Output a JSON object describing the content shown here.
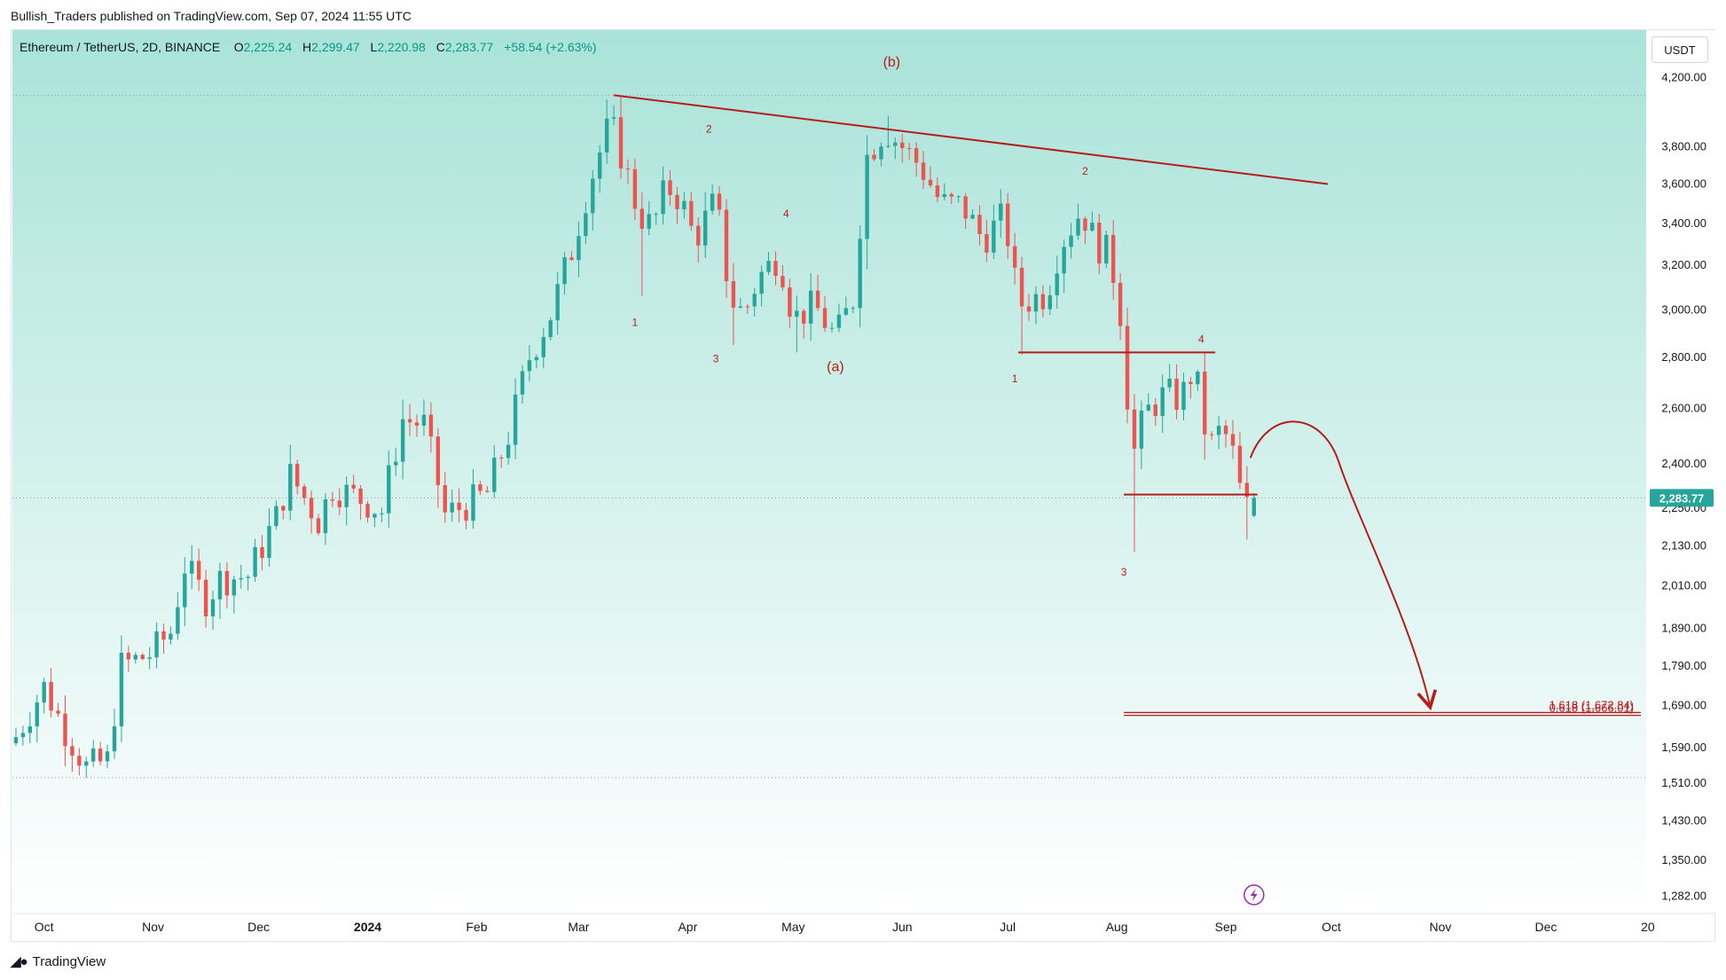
{
  "header": {
    "published_line": "Bullish_Traders published on TradingView.com, Sep 07, 2024 11:55 UTC"
  },
  "legend": {
    "symbol": "Ethereum / TetherUS, 2D, BINANCE",
    "o_label": "O",
    "o_value": "2,225.24",
    "h_label": "H",
    "h_value": "2,299.47",
    "l_label": "L",
    "l_value": "2,220.98",
    "c_label": "C",
    "c_value": "2,283.77",
    "change": "+58.54 (+2.63%)"
  },
  "currency_badge": "USDT",
  "footer": {
    "brand": "TradingView",
    "logo_icon": "tradingview-logo-icon"
  },
  "colors": {
    "up": "#26a69a",
    "down": "#ef5350",
    "annotation": "#b71c1c",
    "annotation_text": "#b71c1c",
    "price_badge": "#26a69a",
    "bg_top": "#a9e3d9",
    "bg_bottom": "#ffffff"
  },
  "chart_data": {
    "type": "candlestick",
    "timeframe": "2D",
    "y_scale": "log",
    "y_range": [
      1250,
      4500
    ],
    "x_range": [
      "2023-09-22",
      "2024-12-28"
    ],
    "y_ticks": [
      "4,200.00",
      "3,800.00",
      "3,600.00",
      "3,400.00",
      "3,200.00",
      "3,000.00",
      "2,800.00",
      "2,600.00",
      "2,400.00",
      "2,250.00",
      "2,130.00",
      "2,010.00",
      "1,890.00",
      "1,790.00",
      "1,690.00",
      "1,590.00",
      "1,510.00",
      "1,430.00",
      "1,350.00",
      "1,282.00"
    ],
    "x_ticks": [
      {
        "label": "Oct",
        "date": "2023-10-01"
      },
      {
        "label": "Nov",
        "date": "2023-11-01"
      },
      {
        "label": "Dec",
        "date": "2023-12-01"
      },
      {
        "label": "2024",
        "date": "2024-01-01",
        "bold": true
      },
      {
        "label": "Feb",
        "date": "2024-02-01"
      },
      {
        "label": "Mar",
        "date": "2024-03-01"
      },
      {
        "label": "Apr",
        "date": "2024-04-01"
      },
      {
        "label": "May",
        "date": "2024-05-01"
      },
      {
        "label": "Jun",
        "date": "2024-06-01"
      },
      {
        "label": "Jul",
        "date": "2024-07-01"
      },
      {
        "label": "Aug",
        "date": "2024-08-01"
      },
      {
        "label": "Sep",
        "date": "2024-09-01"
      },
      {
        "label": "Oct",
        "date": "2024-10-01"
      },
      {
        "label": "Nov",
        "date": "2024-11-01"
      },
      {
        "label": "Dec",
        "date": "2024-12-01"
      },
      {
        "label": "20",
        "date": "2024-12-30"
      }
    ],
    "last_price_label": "2,283.77",
    "last_price": 2283.77,
    "dotted_levels": [
      4095,
      2283.77,
      1522
    ],
    "anchors": [
      [
        "2023-09-22",
        1600
      ],
      [
        "2023-10-01",
        1735
      ],
      [
        "2023-10-07",
        1630
      ],
      [
        "2023-10-13",
        1545
      ],
      [
        "2023-10-19",
        1560
      ],
      [
        "2023-10-23",
        1790
      ],
      [
        "2023-10-31",
        1820
      ],
      [
        "2023-11-06",
        1880
      ],
      [
        "2023-11-10",
        2070
      ],
      [
        "2023-11-16",
        1970
      ],
      [
        "2023-11-20",
        2030
      ],
      [
        "2023-11-28",
        2040
      ],
      [
        "2023-12-06",
        2220
      ],
      [
        "2023-12-10",
        2360
      ],
      [
        "2023-12-18",
        2210
      ],
      [
        "2023-12-22",
        2320
      ],
      [
        "2023-12-30",
        2280
      ],
      [
        "2024-01-05",
        2240
      ],
      [
        "2024-01-11",
        2560
      ],
      [
        "2024-01-17",
        2540
      ],
      [
        "2024-01-23",
        2230
      ],
      [
        "2024-01-29",
        2260
      ],
      [
        "2024-02-04",
        2300
      ],
      [
        "2024-02-10",
        2500
      ],
      [
        "2024-02-16",
        2800
      ],
      [
        "2024-02-22",
        2980
      ],
      [
        "2024-02-28",
        3270
      ],
      [
        "2024-03-04",
        3600
      ],
      [
        "2024-03-10",
        3940
      ],
      [
        "2024-03-14",
        3700
      ],
      [
        "2024-03-18",
        3450
      ],
      [
        "2024-03-22",
        3380
      ],
      [
        "2024-03-26",
        3590
      ],
      [
        "2024-03-30",
        3520
      ],
      [
        "2024-04-03",
        3320
      ],
      [
        "2024-04-09",
        3520
      ],
      [
        "2024-04-13",
        3050
      ],
      [
        "2024-04-17",
        2980
      ],
      [
        "2024-04-21",
        3140
      ],
      [
        "2024-04-27",
        3250
      ],
      [
        "2024-05-01",
        2960
      ],
      [
        "2024-05-07",
        3020
      ],
      [
        "2024-05-13",
        2880
      ],
      [
        "2024-05-19",
        3080
      ],
      [
        "2024-05-21",
        3720
      ],
      [
        "2024-05-27",
        3900
      ],
      [
        "2024-06-02",
        3780
      ],
      [
        "2024-06-06",
        3700
      ],
      [
        "2024-06-12",
        3500
      ],
      [
        "2024-06-18",
        3490
      ],
      [
        "2024-06-24",
        3320
      ],
      [
        "2024-06-30",
        3440
      ],
      [
        "2024-07-04",
        3020
      ],
      [
        "2024-07-08",
        3050
      ],
      [
        "2024-07-12",
        3070
      ],
      [
        "2024-07-16",
        3300
      ],
      [
        "2024-07-22",
        3470
      ],
      [
        "2024-07-26",
        3300
      ],
      [
        "2024-07-30",
        3250
      ],
      [
        "2024-08-03",
        2900
      ],
      [
        "2024-08-05",
        2400
      ],
      [
        "2024-08-09",
        2580
      ],
      [
        "2024-08-15",
        2660
      ],
      [
        "2024-08-19",
        2630
      ],
      [
        "2024-08-23",
        2760
      ],
      [
        "2024-08-27",
        2450
      ],
      [
        "2024-08-31",
        2530
      ],
      [
        "2024-09-04",
        2400
      ],
      [
        "2024-09-06",
        2225.24
      ],
      [
        "2024-09-08",
        2283.77
      ]
    ],
    "hlines": [
      {
        "from": "2024-07-04",
        "to": "2024-08-29",
        "price": 2820
      },
      {
        "from": "2024-08-03",
        "to": "2024-09-10",
        "price": 2295
      }
    ],
    "trendline": {
      "from": [
        "2024-03-11",
        4095
      ],
      "to": [
        "2024-09-30",
        3600
      ]
    },
    "fib_lines": [
      {
        "label": "1.618 (1,672.84)",
        "price": 1672.84
      },
      {
        "label": "0.618 (1,666.01)",
        "price": 1666.01
      }
    ],
    "fib_from_date": "2024-08-03",
    "projection": {
      "start": [
        "2024-09-08",
        2420
      ],
      "peak": [
        "2024-09-18",
        2500
      ],
      "end": [
        "2024-10-29",
        1690
      ]
    },
    "wave_labels": [
      {
        "text": "(b)",
        "date": "2024-05-29",
        "price": 4270,
        "size": 16
      },
      {
        "text": "(a)",
        "date": "2024-05-13",
        "price": 2745,
        "size": 16
      },
      {
        "text": "1",
        "date": "2024-03-17",
        "price": 2930,
        "size": 12
      },
      {
        "text": "2",
        "date": "2024-04-07",
        "price": 3880,
        "size": 12
      },
      {
        "text": "3",
        "date": "2024-04-09",
        "price": 2780,
        "size": 12
      },
      {
        "text": "4",
        "date": "2024-04-29",
        "price": 3430,
        "size": 12
      },
      {
        "text": "1",
        "date": "2024-07-03",
        "price": 2700,
        "size": 12
      },
      {
        "text": "2",
        "date": "2024-07-23",
        "price": 3650,
        "size": 12
      },
      {
        "text": "3",
        "date": "2024-08-03",
        "price": 2040,
        "size": 12
      },
      {
        "text": "4",
        "date": "2024-08-25",
        "price": 2860,
        "size": 12
      }
    ],
    "event_icon": {
      "date": "2024-09-09",
      "name": "lightning-bolt-icon"
    }
  }
}
